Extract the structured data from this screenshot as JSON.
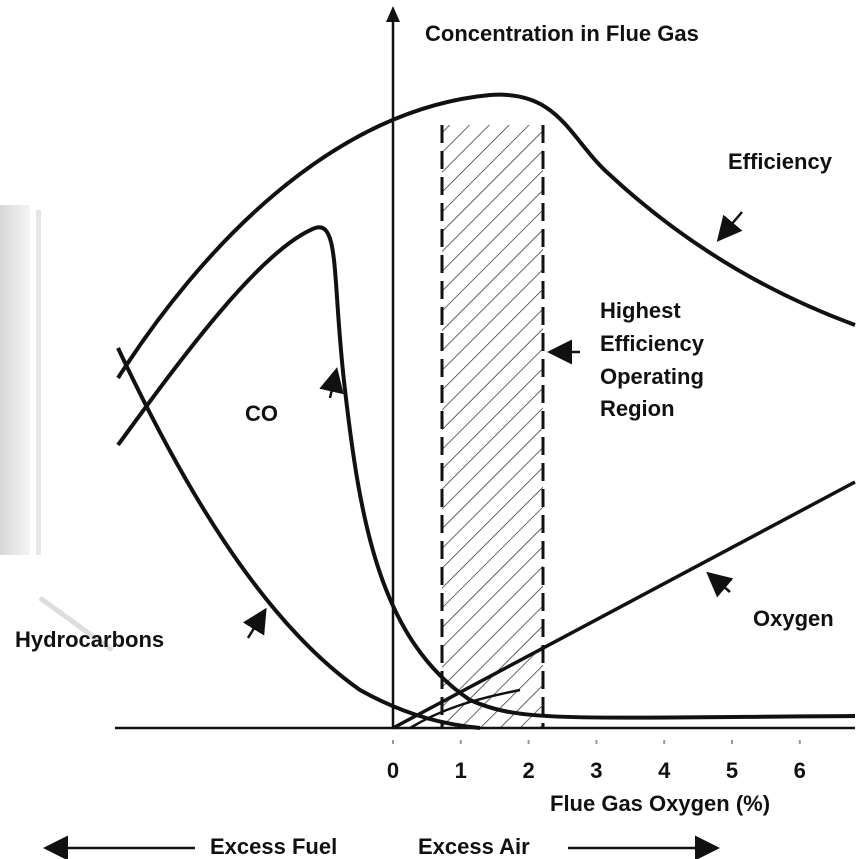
{
  "title": "Concentration in Flue Gas",
  "curves": {
    "efficiency": "Efficiency",
    "co": "CO",
    "oxygen": "Oxygen",
    "hydrocarbons": "Hydrocarbons"
  },
  "region": [
    "Highest",
    "Efficiency",
    "Operating",
    "Region"
  ],
  "x_axis": {
    "ticks": [
      "0",
      "1",
      "2",
      "3",
      "4",
      "5",
      "6"
    ],
    "label": "Flue Gas Oxygen (%)"
  },
  "directions": {
    "left": "Excess Fuel",
    "right": "Excess Air"
  }
}
